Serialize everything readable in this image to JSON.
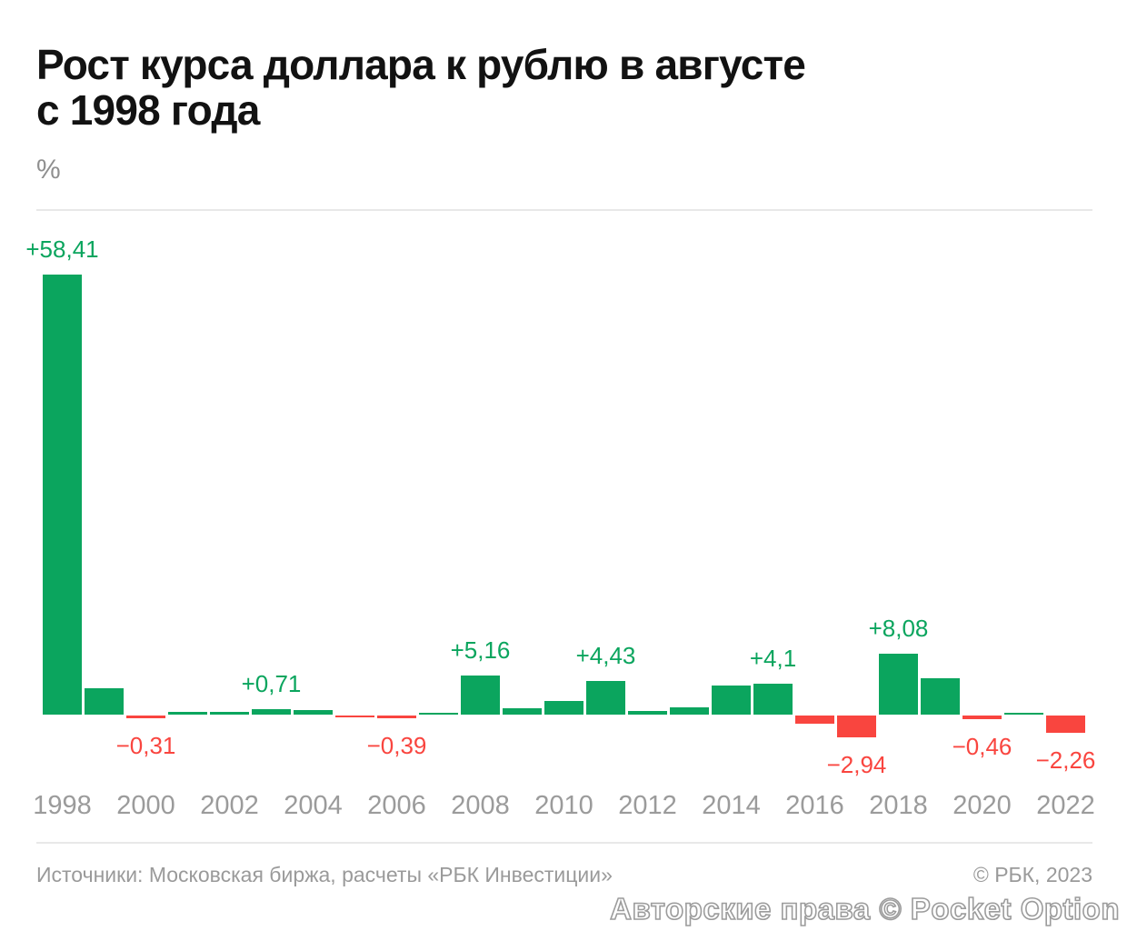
{
  "header": {
    "title_lines": [
      "Рост курса доллара к рублю в августе",
      "с 1998 года"
    ]
  },
  "footer": {
    "sources": "Источники: Московская биржа, расчеты «РБК Инвестиции»",
    "copyright": "© РБК, 2023",
    "watermark": "Авторские права © Pocket Option"
  },
  "colors": {
    "positive": "#0ba55e",
    "negative": "#f9453f",
    "tick_text": "#9b9b9b",
    "footer_text": "#9a9a9a",
    "divider": "#e8e8e8",
    "title_text": "#121212",
    "unit_text": "#8f8f8f",
    "watermark_outline": "#9c9c9c"
  },
  "chart_data": {
    "type": "bar",
    "title": "Рост курса доллара к рублю в августе с 1998 года",
    "xlabel": "",
    "ylabel": "%",
    "grid": false,
    "legend": false,
    "ylim_estimate": [
      -3.5,
      60
    ],
    "baseline": 0,
    "x": [
      1998,
      1999,
      2000,
      2001,
      2002,
      2003,
      2004,
      2005,
      2006,
      2007,
      2008,
      2009,
      2010,
      2011,
      2012,
      2013,
      2014,
      2015,
      2016,
      2017,
      2018,
      2019,
      2020,
      2021,
      2022
    ],
    "values": [
      58.41,
      3.45,
      -0.31,
      0.35,
      0.35,
      0.71,
      0.6,
      -0.25,
      -0.39,
      0.3,
      5.16,
      0.8,
      1.75,
      4.43,
      0.5,
      0.95,
      3.9,
      4.1,
      -1.1,
      -2.94,
      8.08,
      4.8,
      -0.46,
      0.3,
      -2.26
    ],
    "bar_labels": [
      "+58,41",
      null,
      "−0,31",
      null,
      null,
      "+0,71",
      null,
      null,
      "−0,39",
      null,
      "+5,16",
      null,
      null,
      "+4,43",
      null,
      null,
      null,
      "+4,1",
      null,
      "−2,94",
      "+8,08",
      null,
      "−0,46",
      null,
      "−2,26"
    ],
    "x_tick_labels": [
      "1998",
      "2000",
      "2002",
      "2004",
      "2006",
      "2008",
      "2010",
      "2012",
      "2014",
      "2016",
      "2018",
      "2020",
      "2022"
    ]
  }
}
